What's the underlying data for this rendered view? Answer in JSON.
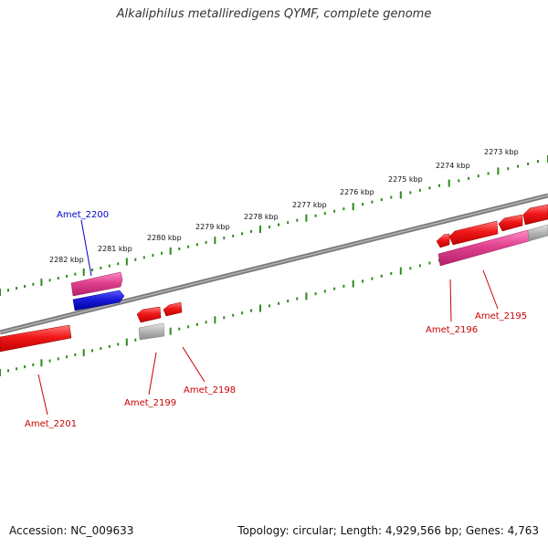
{
  "title": "Alkaliphilus metalliredigens QYMF, complete genome",
  "footer": {
    "accession": "Accession: NC_009633",
    "summary": "Topology: circular; Length: 4,929,566 bp; Genes: 4,763"
  },
  "colors": {
    "backbone": "#7a7a7a",
    "tick": "#2f8a1e",
    "gene_red": "#e8141a",
    "gene_pink": "#e0418d",
    "gene_blue": "#1a1ad8",
    "gene_gray": "#b4b4b4",
    "label_red": "#cc0000",
    "label_blue": "#0000cc"
  },
  "kbp_labels": [
    "2273 kbp",
    "2274 kbp",
    "2275 kbp",
    "2276 kbp",
    "2277 kbp",
    "2278 kbp",
    "2279 kbp",
    "2280 kbp",
    "2281 kbp",
    "2282 kbp"
  ],
  "gene_labels": [
    {
      "name": "Amet_2200",
      "color": "blue"
    },
    {
      "name": "Amet_2201",
      "color": "red"
    },
    {
      "name": "Amet_2199",
      "color": "red"
    },
    {
      "name": "Amet_2198",
      "color": "red"
    },
    {
      "name": "Amet_2196",
      "color": "red"
    },
    {
      "name": "Amet_2195",
      "color": "red"
    }
  ]
}
